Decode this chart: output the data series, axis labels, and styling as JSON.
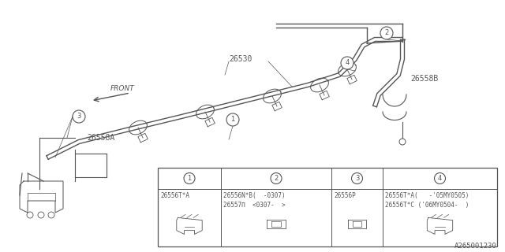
{
  "bg_color": "#ffffff",
  "line_color": "#555555",
  "part_number_main": "26530",
  "part_26558A": "26558A",
  "part_26558B": "26558B",
  "footer_text": "A265001230",
  "front_label": "FRONT",
  "table": {
    "col1_circle": "1",
    "col2_circle": "2",
    "col3_circle": "3",
    "col4_circle": "4",
    "col1_part": "26556T*A",
    "col2_part1": "26556N*B(  -0307)",
    "col2_part2": "26557Π  <0307-  >",
    "col3_part": "26556P",
    "col4_part1": "26556T*A(   -'05MY0505)",
    "col4_part2": "26556T*C ('06MY0504-  )"
  }
}
